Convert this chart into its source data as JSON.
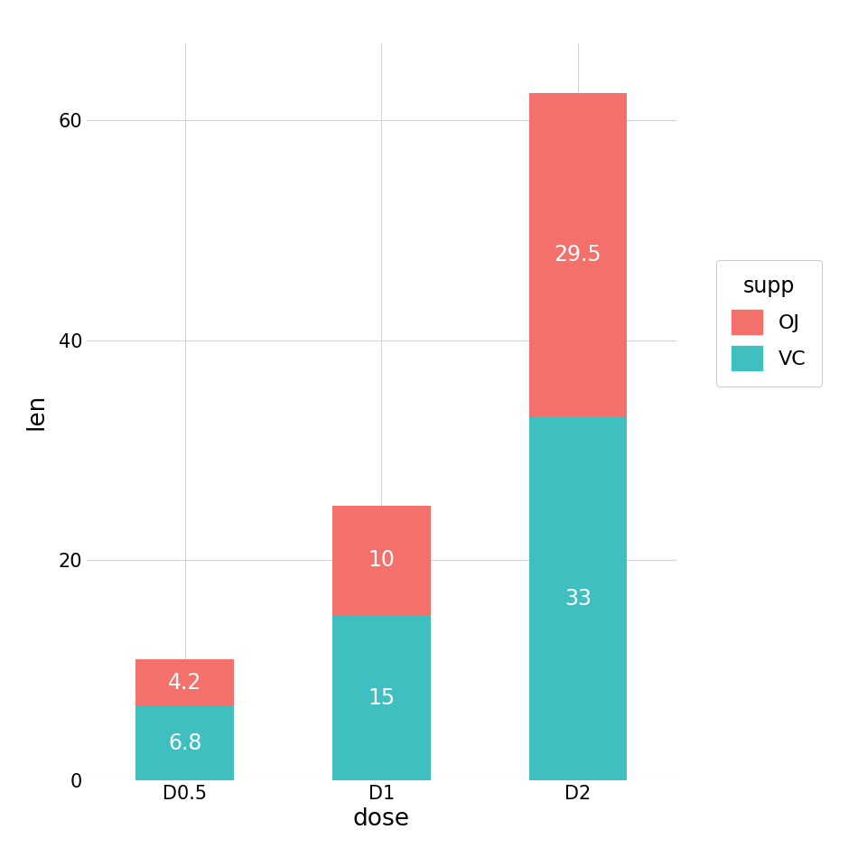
{
  "categories": [
    "D0.5",
    "D1",
    "D2"
  ],
  "vc_values": [
    6.8,
    15.0,
    33.0
  ],
  "oj_values": [
    4.2,
    10.0,
    29.5
  ],
  "vc_color": "#3FBFBF",
  "oj_color": "#F4706A",
  "background_color": "#ffffff",
  "panel_background": "#ffffff",
  "grid_color": "#d4d4d4",
  "xlabel": "dose",
  "ylabel": "len",
  "legend_title": "supp",
  "ylim": [
    0,
    67
  ],
  "yticks": [
    0,
    20,
    40,
    60
  ],
  "bar_width": 0.5,
  "label_fontsize": 17,
  "axis_label_fontsize": 19,
  "tick_fontsize": 15,
  "legend_fontsize": 16,
  "legend_title_fontsize": 17
}
